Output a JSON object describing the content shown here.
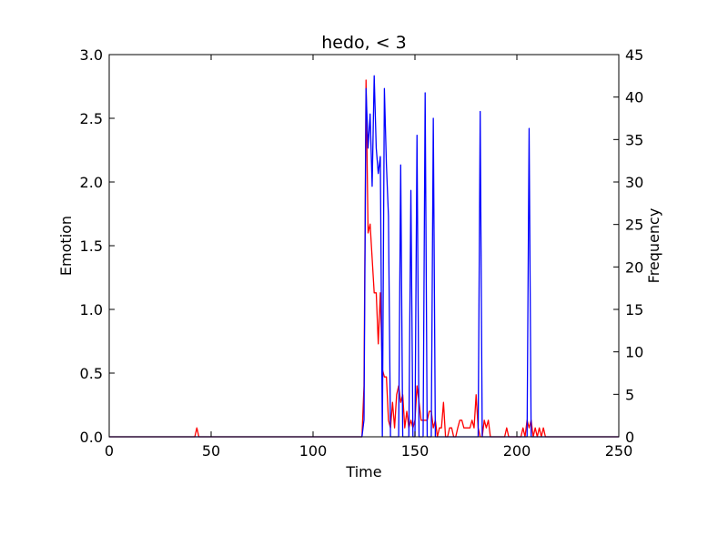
{
  "chart_data": {
    "type": "line",
    "title": "hedo, < 3",
    "xlabel": "Time",
    "ylabel": "Emotion",
    "y2label": "Frequency",
    "xlim": [
      0,
      250
    ],
    "ylim": [
      0,
      3.0
    ],
    "y2lim": [
      0,
      45
    ],
    "xticks": [
      "0",
      "50",
      "100",
      "150",
      "200",
      "250"
    ],
    "yticks": [
      "0.0",
      "0.5",
      "1.0",
      "1.5",
      "2.0",
      "2.5",
      "3.0"
    ],
    "y2ticks": [
      "0",
      "5",
      "10",
      "15",
      "20",
      "25",
      "30",
      "35",
      "40",
      "45"
    ],
    "grid": false,
    "series": [
      {
        "axis": "left",
        "color": "#ff0000",
        "x": [
          0,
          42,
          43,
          44,
          124,
          125,
          126,
          127,
          128,
          129,
          130,
          131,
          132,
          133,
          134,
          135,
          136,
          137,
          138,
          139,
          140,
          141,
          142,
          143,
          144,
          145,
          146,
          147,
          148,
          149,
          150,
          151,
          152,
          153,
          154,
          155,
          156,
          157,
          158,
          159,
          160,
          161,
          162,
          163,
          164,
          165,
          166,
          167,
          168,
          169,
          170,
          171,
          172,
          173,
          174,
          175,
          176,
          177,
          178,
          179,
          180,
          181,
          182,
          183,
          184,
          185,
          186,
          187,
          188,
          194,
          195,
          196,
          202,
          203,
          204,
          205,
          206,
          207,
          208,
          209,
          210,
          211,
          212,
          213,
          214,
          250
        ],
        "values": [
          0,
          0,
          0.07,
          0,
          0,
          0.4,
          2.8,
          1.6,
          1.67,
          1.4,
          1.13,
          1.13,
          0.73,
          1.13,
          0.53,
          0.47,
          0.47,
          0.13,
          0.07,
          0.27,
          0.07,
          0.33,
          0.4,
          0.27,
          0.33,
          0.07,
          0.2,
          0.07,
          0.13,
          0.07,
          0.13,
          0.4,
          0.27,
          0.13,
          0.13,
          0.13,
          0.13,
          0.2,
          0.2,
          0.07,
          0.13,
          0,
          0.07,
          0.07,
          0.27,
          0,
          0,
          0.07,
          0.07,
          0,
          0,
          0.07,
          0.13,
          0.13,
          0.07,
          0.07,
          0.07,
          0.07,
          0.13,
          0.07,
          0.33,
          0.07,
          0,
          0,
          0.13,
          0.07,
          0.13,
          0,
          0,
          0,
          0.07,
          0,
          0,
          0.07,
          0,
          0.13,
          0.07,
          0.13,
          0,
          0.07,
          0,
          0.07,
          0,
          0.07,
          0,
          0
        ]
      },
      {
        "axis": "right",
        "color": "#0000ff",
        "x": [
          0,
          124,
          125,
          126,
          127,
          128,
          129,
          130,
          131,
          132,
          133,
          134,
          135,
          136,
          137,
          138,
          139,
          140,
          141,
          142,
          143,
          144,
          145,
          146,
          147,
          148,
          149,
          150,
          151,
          152,
          153,
          154,
          155,
          156,
          157,
          158,
          159,
          160,
          161,
          162,
          180,
          181,
          182,
          183,
          184,
          204,
          205,
          206,
          207,
          208,
          250
        ],
        "values": [
          0,
          0,
          2,
          41,
          34,
          38,
          29.5,
          42.5,
          34,
          31,
          33,
          0,
          41,
          32,
          26,
          0,
          0,
          0,
          0,
          0,
          32,
          0,
          0,
          0,
          0,
          29,
          0,
          0,
          35.5,
          0,
          0,
          0,
          40.5,
          0,
          0,
          0,
          37.5,
          0,
          0,
          0,
          0,
          0,
          38.3,
          0,
          0,
          0,
          0,
          36.3,
          0,
          0,
          0
        ]
      }
    ]
  }
}
